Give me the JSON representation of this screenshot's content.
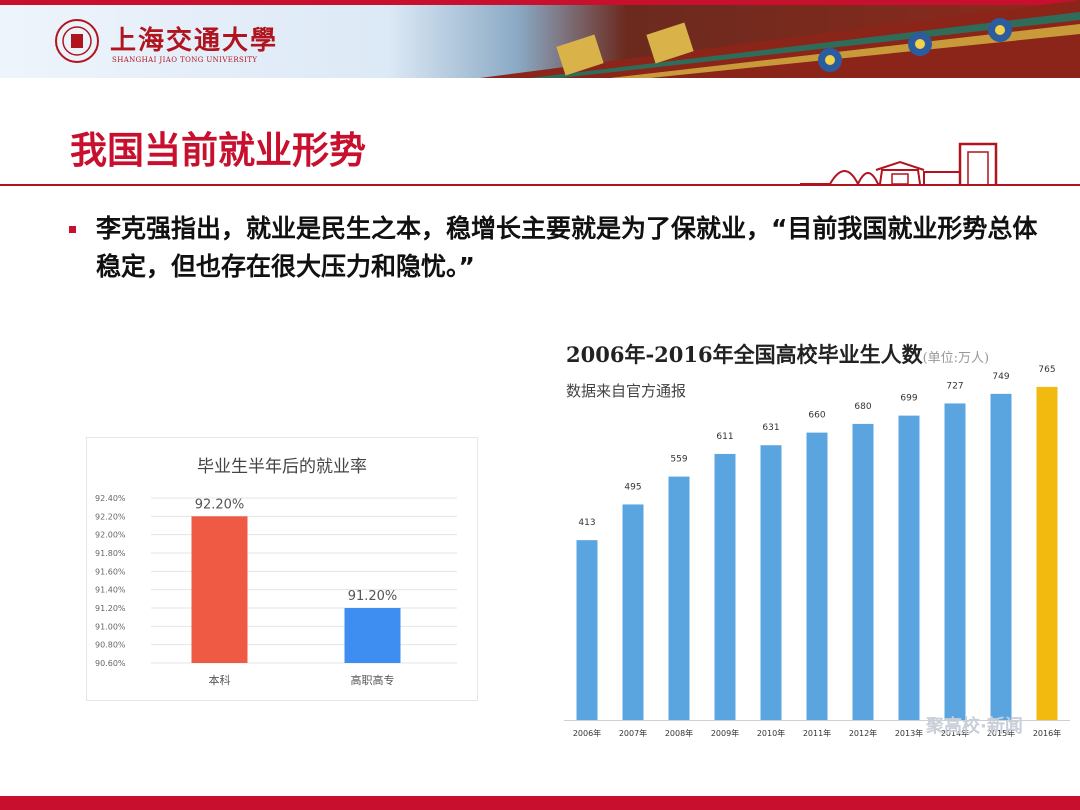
{
  "header": {
    "university_cn": "上海交通大學",
    "university_en": "SHANGHAI JIAO TONG UNIVERSITY"
  },
  "slide": {
    "title": "我国当前就业形势",
    "bullet": "李克强指出，就业是民生之本，稳增长主要就是为了保就业，“目前我国就业形势总体稳定，但也存在很大压力和隐忧。”"
  },
  "chart_data": [
    {
      "type": "bar",
      "title": "毕业生半年后的就业率",
      "categories": [
        "本科",
        "高职高专"
      ],
      "values": [
        92.2,
        91.2
      ],
      "data_labels": [
        "92.20%",
        "91.20%"
      ],
      "ylim": [
        90.6,
        92.4
      ],
      "yticks": [
        "92.40%",
        "92.20%",
        "92.00%",
        "91.80%",
        "91.60%",
        "91.40%",
        "91.20%",
        "91.00%",
        "90.80%",
        "90.60%"
      ],
      "colors": [
        "#ef5a45",
        "#3d8ef0"
      ],
      "grid": true
    },
    {
      "type": "bar",
      "title": "2006年-2016年全国高校毕业生人数",
      "title_unit": "(单位:万人)",
      "subtitle": "数据来自官方通报",
      "categories": [
        "2006年",
        "2007年",
        "2008年",
        "2009年",
        "2010年",
        "2011年",
        "2012年",
        "2013年",
        "2014年",
        "2015年",
        "2016年"
      ],
      "values": [
        413,
        495,
        559,
        611,
        631,
        660,
        680,
        699,
        727,
        749,
        765
      ],
      "colors": {
        "normal": "#5aa4e0",
        "highlight": "#f2b90f"
      },
      "ylim": [
        0,
        790
      ],
      "grid": false
    }
  ],
  "watermark": "聚高校·新闻"
}
